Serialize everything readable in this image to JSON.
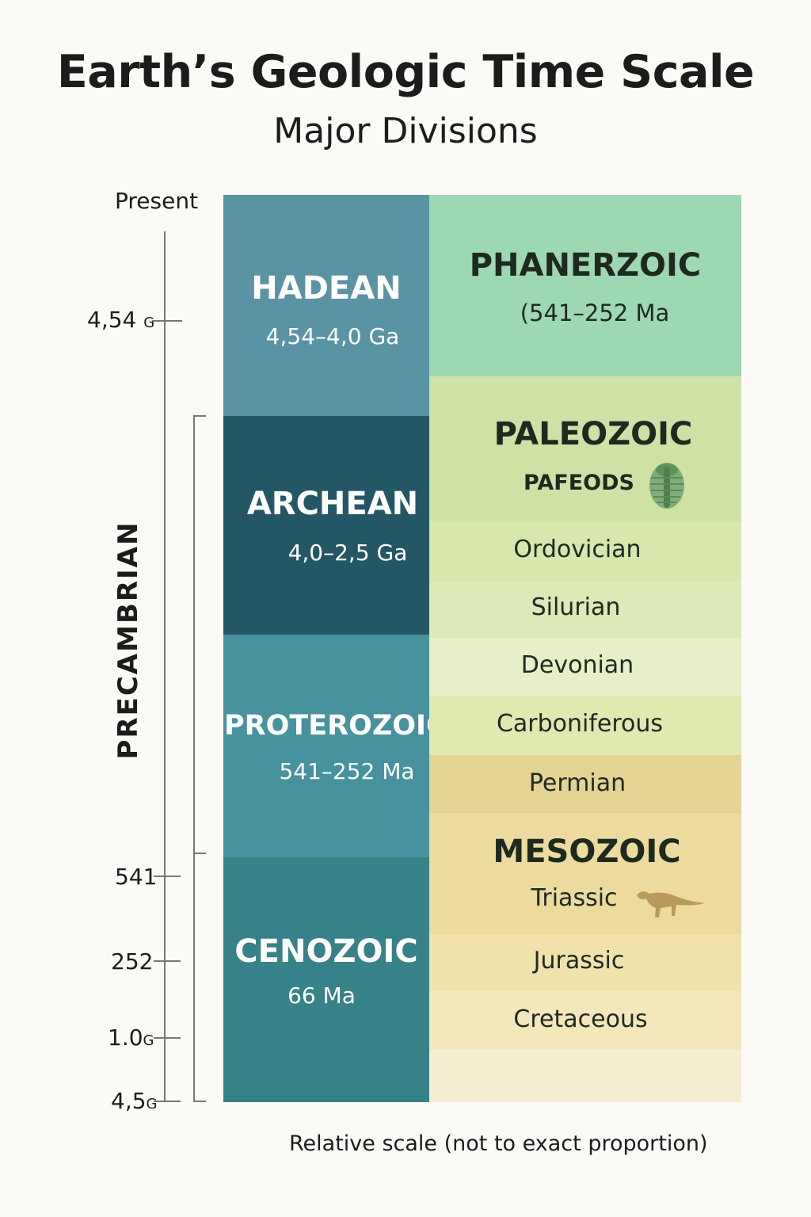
{
  "title": "Earth’s Geologic Time Scale",
  "subtitle": "Major Divisions",
  "axis": {
    "present": "Present",
    "ticks": [
      {
        "value": "4,54",
        "unit": "G"
      },
      {
        "value": "541",
        "unit": ""
      },
      {
        "value": "252",
        "unit": ""
      },
      {
        "value": "1.0",
        "unit": "G"
      },
      {
        "value": "4,5",
        "unit": "G"
      }
    ],
    "bracket_label": "PRECAMBRIAN"
  },
  "eons": [
    {
      "name": "HADEAN",
      "range": "4,54–4,0 Ga",
      "color": "#5a93a3"
    },
    {
      "name": "ARCHEAN",
      "range": "4,0–2,5 Ga",
      "color": "#245766"
    },
    {
      "name": "PROTEROZOIC",
      "range": "541–252 Ma",
      "color": "#47929e"
    },
    {
      "name": "CENOZOIC",
      "range": "66 Ma",
      "color": "#378189"
    }
  ],
  "bands": {
    "phanerozoic": {
      "name": "PHANERZOIC",
      "range": "(541–252 Ma",
      "color": "#9dd8b3"
    },
    "paleozoic": {
      "name": "PALEOZOIC",
      "label": "PAFEODS",
      "icon": "trilobite-icon",
      "color": "#cfe2a6"
    },
    "ordovician": {
      "label": "Ordovician",
      "color": "#d7e7ad"
    },
    "silurian": {
      "label": "Silurian",
      "color": "#dde9b6"
    },
    "devonian": {
      "label": "Devonian",
      "color": "#e6efc6"
    },
    "carboniferous": {
      "label": "Carboniferous",
      "color": "#e1e8b0"
    },
    "permian": {
      "label": "Permian",
      "color": "#e5d394"
    },
    "mesozoic": {
      "name": "MESOZOIC",
      "label": "Triassic",
      "icon": "dinosaur-icon",
      "color": "#ecda9e"
    },
    "jurassic": {
      "label": "Jurassic",
      "color": "#f1e2ac"
    },
    "cretaceous": {
      "label": "Cretaceous",
      "color": "#f4e7bb"
    },
    "bottom": {
      "color": "#f7eed2"
    }
  },
  "footer": "Relative scale (not to exact proportion)"
}
